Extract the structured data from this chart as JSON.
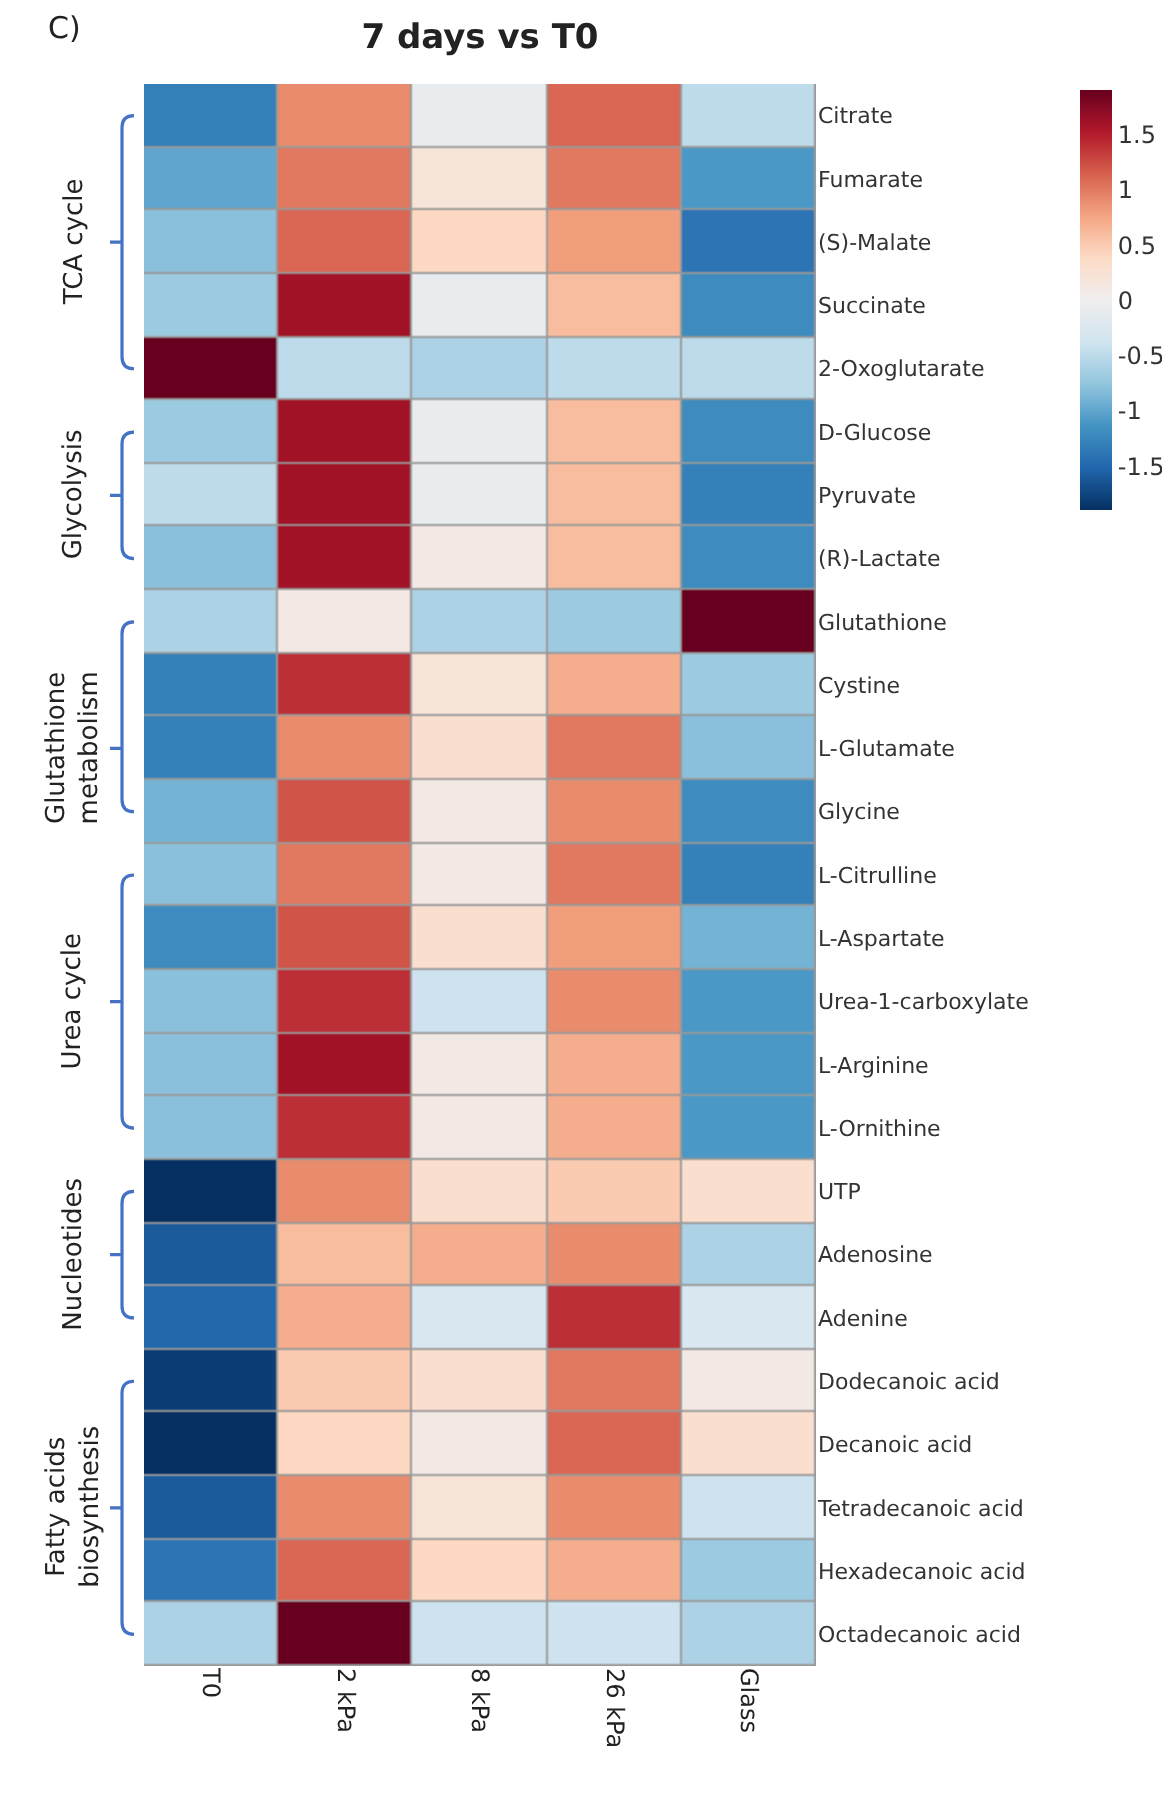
{
  "chart_data": {
    "type": "heatmap",
    "title": "7 days vs T0",
    "categories": [
      "T0",
      "2 kPa",
      "8 kPa",
      "26 kPa",
      "Glass"
    ],
    "y_categories": [
      "Citrate",
      "Fumarate",
      "(S)-Malate",
      "Succinate",
      "2-Oxoglutarate",
      "D-Glucose",
      "Pyruvate",
      "(R)-Lactate",
      "Glutathione",
      "Cystine",
      "L-Glutamate",
      "Glycine",
      "L-Citrulline",
      "L-Aspartate",
      "Urea-1-carboxylate",
      "L-Arginine",
      "L-Ornithine",
      "UTP",
      "Adenosine",
      "Adenine",
      "Dodecanoic acid",
      "Decanoic acid",
      "Tetradecanoic acid",
      "Hexadecanoic acid",
      "Octadecanoic acid"
    ],
    "cells": [
      [
        -1.3,
        0.9,
        -0.1,
        1.1,
        -0.5
      ],
      [
        -1.0,
        1.0,
        0.2,
        1.0,
        -1.1
      ],
      [
        -0.8,
        1.1,
        0.4,
        0.8,
        -1.4
      ],
      [
        -0.7,
        1.6,
        -0.1,
        0.6,
        -1.2
      ],
      [
        1.9,
        -0.5,
        -0.6,
        -0.5,
        -0.5
      ],
      [
        -0.7,
        1.6,
        -0.1,
        0.6,
        -1.2
      ],
      [
        -0.5,
        1.6,
        -0.1,
        0.6,
        -1.3
      ],
      [
        -0.8,
        1.6,
        0.1,
        0.6,
        -1.2
      ],
      [
        -0.6,
        0.1,
        -0.6,
        -0.7,
        1.9
      ],
      [
        -1.3,
        1.4,
        0.2,
        0.7,
        -0.7
      ],
      [
        -1.3,
        0.9,
        0.3,
        1.0,
        -0.8
      ],
      [
        -0.9,
        1.2,
        0.1,
        0.9,
        -1.2
      ],
      [
        -0.8,
        1.0,
        0.1,
        1.0,
        -1.3
      ],
      [
        -1.2,
        1.2,
        0.3,
        0.8,
        -0.9
      ],
      [
        -0.8,
        1.4,
        -0.4,
        0.9,
        -1.1
      ],
      [
        -0.8,
        1.6,
        0.1,
        0.7,
        -1.1
      ],
      [
        -0.8,
        1.4,
        0.1,
        0.7,
        -1.1
      ],
      [
        -1.9,
        0.9,
        0.3,
        0.5,
        0.3
      ],
      [
        -1.6,
        0.6,
        0.7,
        0.9,
        -0.6
      ],
      [
        -1.5,
        0.7,
        -0.3,
        1.4,
        -0.3
      ],
      [
        -1.8,
        0.5,
        0.3,
        1.0,
        0.1
      ],
      [
        -1.9,
        0.4,
        0.1,
        1.1,
        0.3
      ],
      [
        -1.6,
        0.9,
        0.2,
        0.9,
        -0.4
      ],
      [
        -1.4,
        1.1,
        0.4,
        0.7,
        -0.7
      ],
      [
        -0.6,
        1.9,
        -0.4,
        -0.4,
        -0.6
      ]
    ],
    "clim": [
      -1.9,
      1.9
    ],
    "cticks": [
      -1.5,
      -1,
      -0.5,
      0,
      0.5,
      1,
      1.5
    ],
    "annotations": [
      "C)",
      "TCA cycle",
      "Glycolysis",
      "Glutathione\nmetabolism",
      "Urea cycle",
      "Nucleotides",
      "Fatty acids\nbiosynthesis"
    ]
  }
}
